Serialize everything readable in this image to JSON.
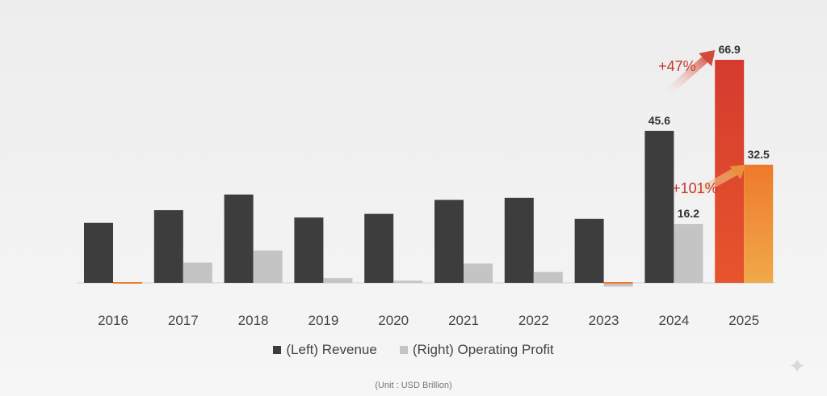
{
  "chart_data": {
    "type": "bar",
    "categories": [
      "2016",
      "2017",
      "2018",
      "2019",
      "2020",
      "2021",
      "2022",
      "2023",
      "2024",
      "2025"
    ],
    "series": [
      {
        "name": "(Left) Revenue",
        "axis": "left",
        "color": "#3d3d3d",
        "highlight_color": "#d93a2e",
        "values": [
          18.0,
          21.8,
          26.5,
          19.6,
          20.7,
          24.9,
          25.5,
          19.2,
          45.6,
          66.9
        ]
      },
      {
        "name": "(Right) Operating Profit",
        "axis": "right",
        "color": "#c4c4c4",
        "highlight_color": "#ee7a2b",
        "values": [
          0.1,
          5.6,
          8.9,
          1.3,
          0.6,
          5.3,
          3.0,
          -1.0,
          16.2,
          32.5
        ]
      }
    ],
    "data_labels": {
      "revenue": {
        "2024": "45.6",
        "2025": "66.9"
      },
      "profit": {
        "2024": "16.2",
        "2025": "32.5"
      }
    },
    "annotations": [
      {
        "text": "+47%",
        "series": "revenue",
        "from": "2024",
        "to": "2025"
      },
      {
        "text": "+101%",
        "series": "profit",
        "from": "2024",
        "to": "2025"
      }
    ],
    "title": "",
    "xlabel": "",
    "ylabel": "",
    "ylim_left": [
      0,
      80
    ],
    "ylim_right": [
      0,
      40
    ],
    "highlight_category": "2025",
    "legend_position": "bottom-center",
    "grid": false
  },
  "legend": {
    "revenue_label": "(Left) Revenue",
    "profit_label": "(Right) Operating Profit"
  },
  "unit_note": "(Unit : USD Brillion)",
  "colors": {
    "annotation_text": "#c0392b",
    "label_text": "#333333"
  }
}
